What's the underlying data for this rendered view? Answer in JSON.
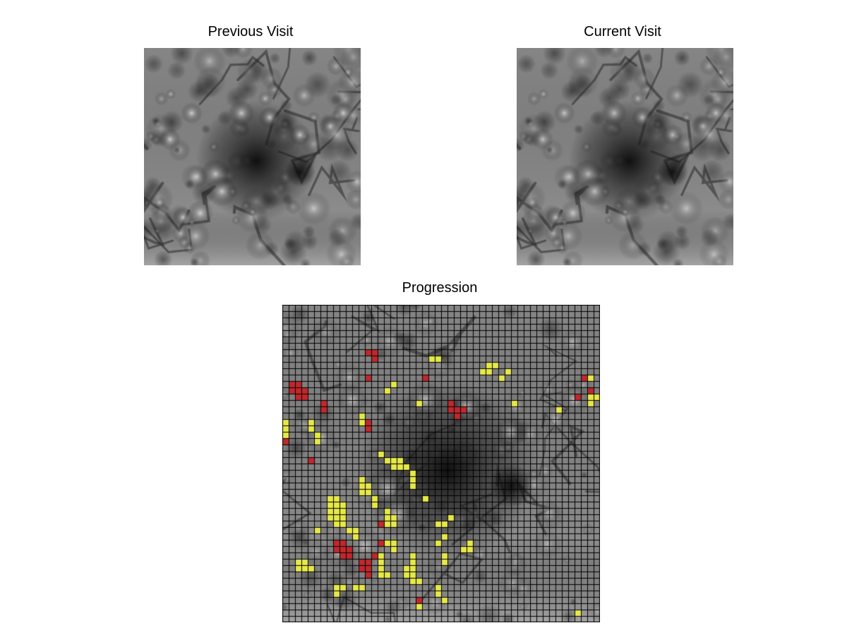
{
  "panels": {
    "previous": {
      "title": "Previous Visit"
    },
    "current": {
      "title": "Current Visit"
    },
    "progression": {
      "title": "Progression"
    }
  },
  "colors": {
    "background": "#ffffff",
    "grid": "#000000",
    "progression_yellow": "#e6e84a",
    "progression_red": "#c0282d"
  },
  "progression_grid": {
    "rows": 50,
    "cols": 50,
    "yellow_cells": [
      [
        9,
        24
      ],
      [
        9,
        25
      ],
      [
        10,
        33
      ],
      [
        10,
        34
      ],
      [
        11,
        32
      ],
      [
        11,
        33
      ],
      [
        13,
        18
      ],
      [
        14,
        17
      ],
      [
        16,
        22
      ],
      [
        16,
        37
      ],
      [
        15,
        49
      ],
      [
        15,
        50
      ],
      [
        14,
        49
      ],
      [
        12,
        49
      ],
      [
        19,
        1
      ],
      [
        20,
        1
      ],
      [
        21,
        1
      ],
      [
        19,
        5
      ],
      [
        20,
        5
      ],
      [
        21,
        6
      ],
      [
        22,
        6
      ],
      [
        19,
        13
      ],
      [
        18,
        13
      ],
      [
        25,
        17
      ],
      [
        25,
        18
      ],
      [
        25,
        19
      ],
      [
        26,
        18
      ],
      [
        26,
        19
      ],
      [
        26,
        20
      ],
      [
        27,
        21
      ],
      [
        28,
        21
      ],
      [
        29,
        21
      ],
      [
        24,
        16
      ],
      [
        28,
        13
      ],
      [
        29,
        13
      ],
      [
        30,
        13
      ],
      [
        29,
        14
      ],
      [
        30,
        14
      ],
      [
        31,
        15
      ],
      [
        32,
        15
      ],
      [
        31,
        8
      ],
      [
        31,
        9
      ],
      [
        32,
        8
      ],
      [
        32,
        9
      ],
      [
        32,
        10
      ],
      [
        33,
        8
      ],
      [
        33,
        9
      ],
      [
        33,
        10
      ],
      [
        34,
        8
      ],
      [
        34,
        9
      ],
      [
        34,
        10
      ],
      [
        35,
        9
      ],
      [
        35,
        10
      ],
      [
        36,
        11
      ],
      [
        36,
        12
      ],
      [
        37,
        12
      ],
      [
        33,
        17
      ],
      [
        34,
        17
      ],
      [
        34,
        18
      ],
      [
        35,
        18
      ],
      [
        35,
        17
      ],
      [
        35,
        16
      ],
      [
        31,
        23
      ],
      [
        35,
        25
      ],
      [
        35,
        26
      ],
      [
        34,
        27
      ],
      [
        39,
        29
      ],
      [
        38,
        30
      ],
      [
        39,
        30
      ],
      [
        40,
        26
      ],
      [
        41,
        26
      ],
      [
        38,
        17
      ],
      [
        38,
        18
      ],
      [
        39,
        18
      ],
      [
        40,
        16
      ],
      [
        41,
        16
      ],
      [
        42,
        16
      ],
      [
        40,
        21
      ],
      [
        41,
        21
      ],
      [
        42,
        20
      ],
      [
        42,
        21
      ],
      [
        43,
        20
      ],
      [
        43,
        21
      ],
      [
        44,
        21
      ],
      [
        44,
        22
      ],
      [
        41,
        3
      ],
      [
        41,
        4
      ],
      [
        42,
        3
      ],
      [
        42,
        4
      ],
      [
        42,
        5
      ],
      [
        45,
        9
      ],
      [
        45,
        10
      ],
      [
        46,
        9
      ],
      [
        47,
        22
      ],
      [
        48,
        22
      ],
      [
        45,
        25
      ],
      [
        46,
        25
      ],
      [
        47,
        26
      ],
      [
        49,
        47
      ],
      [
        43,
        16
      ],
      [
        43,
        17
      ],
      [
        36,
        6
      ],
      [
        39,
        10
      ],
      [
        38,
        25
      ],
      [
        37,
        26
      ],
      [
        17,
        44
      ],
      [
        12,
        35
      ],
      [
        11,
        36
      ],
      [
        16,
        49
      ],
      [
        45,
        12
      ],
      [
        45,
        13
      ]
    ],
    "red_cells": [
      [
        8,
        14
      ],
      [
        8,
        15
      ],
      [
        9,
        15
      ],
      [
        12,
        14
      ],
      [
        13,
        2
      ],
      [
        13,
        3
      ],
      [
        14,
        2
      ],
      [
        14,
        3
      ],
      [
        14,
        4
      ],
      [
        15,
        3
      ],
      [
        15,
        4
      ],
      [
        16,
        7
      ],
      [
        17,
        7
      ],
      [
        19,
        14
      ],
      [
        20,
        14
      ],
      [
        16,
        27
      ],
      [
        17,
        27
      ],
      [
        17,
        28
      ],
      [
        17,
        29
      ],
      [
        18,
        28
      ],
      [
        22,
        1
      ],
      [
        25,
        5
      ],
      [
        12,
        23
      ],
      [
        12,
        48
      ],
      [
        14,
        49
      ],
      [
        15,
        47
      ],
      [
        38,
        9
      ],
      [
        38,
        10
      ],
      [
        39,
        9
      ],
      [
        39,
        10
      ],
      [
        40,
        10
      ],
      [
        39,
        11
      ],
      [
        40,
        11
      ],
      [
        41,
        13
      ],
      [
        41,
        14
      ],
      [
        42,
        13
      ],
      [
        42,
        14
      ],
      [
        43,
        14
      ],
      [
        40,
        15
      ],
      [
        38,
        16
      ],
      [
        47,
        22
      ],
      [
        35,
        16
      ]
    ]
  }
}
